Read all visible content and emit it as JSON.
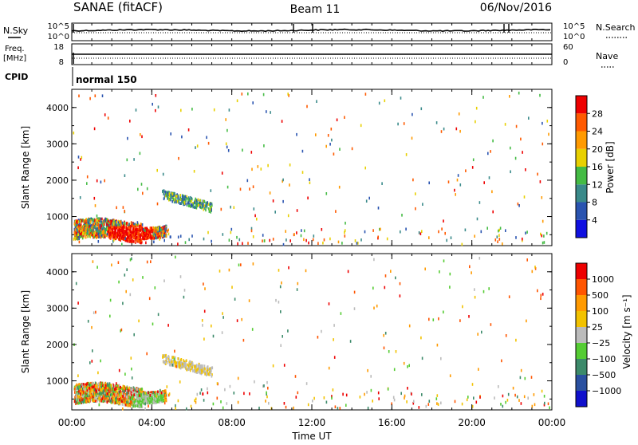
{
  "header": {
    "station": "SANAE (fitACF)",
    "beam": "Beam 11",
    "date": "06/Nov/2016"
  },
  "top_panels": {
    "nsky_label": "N.Sky",
    "nsearch_label": "N.Search",
    "noise_ticks": [
      "10^5",
      "10^0"
    ],
    "freq_label": "Freq.",
    "freq_unit": "[MHz]",
    "freq_ticks": [
      "18",
      "8"
    ],
    "nave_label": "Nave",
    "nave_ticks": [
      "60",
      "0"
    ],
    "cpid_label": "CPID",
    "cpid_value": "normal 150"
  },
  "chart_data": [
    {
      "type": "heatmap",
      "name": "power",
      "ylabel": "Slant Range [km]",
      "xlabel": "",
      "ylim": [
        200,
        4500
      ],
      "xlim_hours": [
        0,
        24
      ],
      "yticks": [
        "1000",
        "2000",
        "3000",
        "4000"
      ],
      "colorbar": {
        "label": "Power [dB]",
        "ticks": [
          "4",
          "8",
          "12",
          "16",
          "20",
          "24",
          "28"
        ],
        "colors": [
          "#1010e0",
          "#2a54b0",
          "#3a8a8a",
          "#44bb44",
          "#e8d000",
          "#ff9a00",
          "#ff5a00",
          "#ee0000"
        ]
      }
    },
    {
      "type": "heatmap",
      "name": "velocity",
      "ylabel": "Slant Range [km]",
      "xlabel": "Time UT",
      "ylim": [
        200,
        4500
      ],
      "xlim_hours": [
        0,
        24
      ],
      "yticks": [
        "1000",
        "2000",
        "3000",
        "4000"
      ],
      "xticks": [
        "00:00",
        "04:00",
        "08:00",
        "12:00",
        "16:00",
        "20:00",
        "00:00"
      ],
      "colorbar": {
        "label": "Velocity [m s⁻¹]",
        "ticks": [
          "1000",
          "500",
          "100",
          "25",
          "−25",
          "−100",
          "−500",
          "−1000"
        ],
        "colors": [
          "#1010cc",
          "#2a50a0",
          "#3c8a6a",
          "#55cc33",
          "#bbbbbb",
          "#f2c200",
          "#ff9a00",
          "#ff5500",
          "#ee0000"
        ]
      }
    }
  ]
}
